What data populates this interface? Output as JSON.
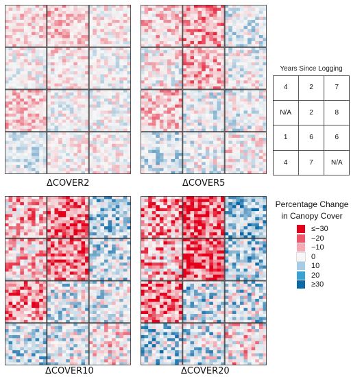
{
  "chart_data": {
    "type": "heatmap",
    "panels": [
      {
        "name": "ΔCOVER2",
        "intensity": 0.45,
        "block_bias": [
          -0.35,
          -0.6,
          -0.15,
          0.0,
          -0.25,
          0.05,
          -0.5,
          0.05,
          0.05,
          0.4,
          -0.05,
          -0.1
        ]
      },
      {
        "name": "ΔCOVER5",
        "intensity": 0.6,
        "block_bias": [
          -0.3,
          -0.75,
          0.25,
          -0.05,
          -0.6,
          0.1,
          -0.45,
          0.2,
          0.15,
          0.4,
          0.1,
          -0.05
        ]
      },
      {
        "name": "ΔCOVER10",
        "intensity": 0.85,
        "block_bias": [
          -0.4,
          -0.8,
          0.45,
          -0.3,
          -0.8,
          0.3,
          -0.65,
          0.25,
          0.2,
          0.35,
          0.2,
          -0.1
        ]
      },
      {
        "name": "ΔCOVER20",
        "intensity": 1.0,
        "block_bias": [
          -0.45,
          -0.95,
          0.5,
          -0.35,
          -0.95,
          0.35,
          -0.75,
          0.3,
          0.25,
          0.4,
          0.25,
          -0.1
        ]
      }
    ],
    "years_since_logging": {
      "title": "Years Since Logging",
      "cells": [
        "4",
        "2",
        "7",
        "N/A",
        "2",
        "8",
        "1",
        "6",
        "6",
        "4",
        "7",
        "N/A"
      ]
    },
    "legend": {
      "title_line1": "Percentage Change",
      "title_line2": "in Canopy Cover",
      "entries": [
        {
          "label": "≤−30",
          "color": "#e4001b"
        },
        {
          "label": "−20",
          "color": "#f0566b"
        },
        {
          "label": "−10",
          "color": "#f6a9b4"
        },
        {
          "label": "0",
          "color": "#f7f7f7"
        },
        {
          "label": "10",
          "color": "#a6cde6"
        },
        {
          "label": "20",
          "color": "#3aa2d2"
        },
        {
          "label": "≥30",
          "color": "#0a6aa8"
        }
      ]
    }
  }
}
